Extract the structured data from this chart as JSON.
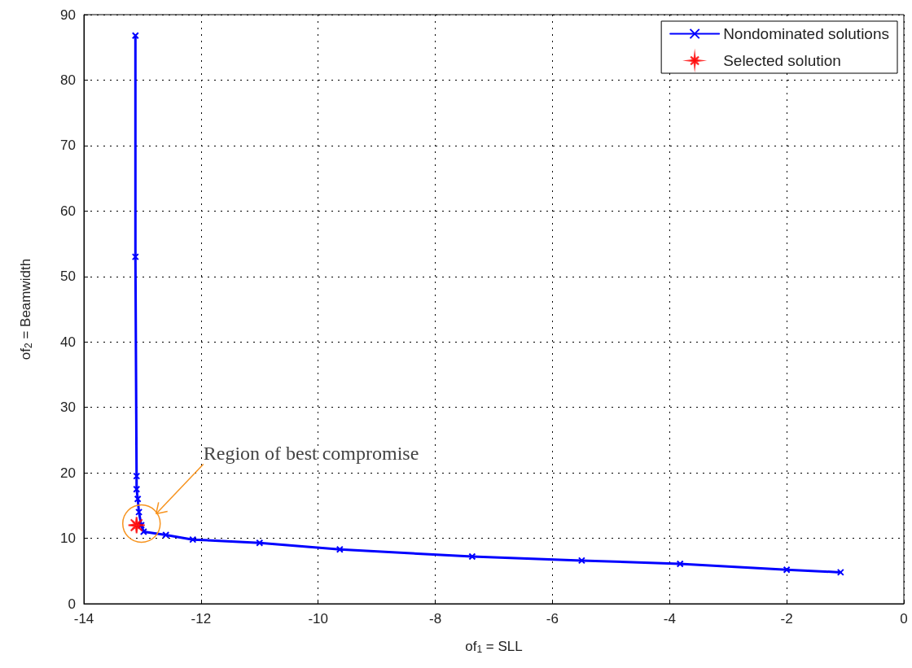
{
  "chart_data": {
    "type": "line",
    "xlabel": "of$_{1}$ = SLL",
    "ylabel": "of$_{2}$ = Beamwidth",
    "xlim": [
      -14,
      0
    ],
    "xticks": [
      -14,
      -12,
      -10,
      -8,
      -6,
      -4,
      -2,
      0
    ],
    "ylim": [
      0,
      90
    ],
    "yticks": [
      0,
      10,
      20,
      30,
      40,
      50,
      60,
      70,
      80,
      90
    ],
    "grid": true,
    "legend": "top right",
    "series": [
      {
        "name": "Nondominated solutions",
        "color": "#0000ff",
        "marker": "cross",
        "line_style": "solid",
        "x": [
          -13.12,
          -13.12,
          -13.1,
          -13.1,
          -13.08,
          -13.06,
          -13.02,
          -12.98,
          -12.6,
          -12.14,
          -11,
          -9.63,
          -7.37,
          -5.5,
          -3.82,
          -2,
          -1.08
        ],
        "values": [
          86.8,
          53,
          19.5,
          17.5,
          16,
          14,
          12,
          11,
          10.5,
          9.8,
          9.3,
          8.3,
          7.2,
          6.6,
          6.1,
          5.2,
          4.8
        ]
      },
      {
        "name": "Selected solution",
        "type": "scatter",
        "color": "#ff0000",
        "marker": "star",
        "x": [
          -13.1
        ],
        "values": [
          12
        ]
      }
    ],
    "annotations": [
      "Region of best compromise"
    ]
  }
}
